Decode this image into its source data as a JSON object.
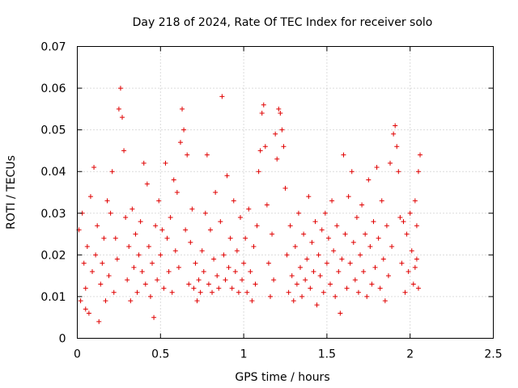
{
  "chart_data": {
    "type": "scatter",
    "title": "Day 218 of 2024, Rate Of TEC Index for receiver solo",
    "xlabel": "GPS time / hours",
    "ylabel": "ROTI / TECUs",
    "xlim": [
      0,
      2.5
    ],
    "ylim": [
      0,
      0.07
    ],
    "xticks": [
      0,
      0.5,
      1,
      1.5,
      2,
      2.5
    ],
    "xtick_labels": [
      "0",
      "0.5",
      "1",
      "1.5",
      "2",
      "2.5"
    ],
    "yticks": [
      0,
      0.01,
      0.02,
      0.03,
      0.04,
      0.05,
      0.06,
      0.07
    ],
    "ytick_labels": [
      "0",
      "0.01",
      "0.02",
      "0.03",
      "0.04",
      "0.05",
      "0.06",
      "0.07"
    ],
    "grid": true,
    "marker": "+",
    "color": "#e00000",
    "series": [
      {
        "name": "ROTI",
        "points": [
          [
            0.01,
            0.026
          ],
          [
            0.02,
            0.009
          ],
          [
            0.03,
            0.03
          ],
          [
            0.04,
            0.018
          ],
          [
            0.05,
            0.012
          ],
          [
            0.05,
            0.007
          ],
          [
            0.06,
            0.022
          ],
          [
            0.07,
            0.006
          ],
          [
            0.08,
            0.034
          ],
          [
            0.09,
            0.016
          ],
          [
            0.1,
            0.041
          ],
          [
            0.11,
            0.02
          ],
          [
            0.12,
            0.027
          ],
          [
            0.13,
            0.004
          ],
          [
            0.14,
            0.013
          ],
          [
            0.15,
            0.018
          ],
          [
            0.16,
            0.024
          ],
          [
            0.17,
            0.009
          ],
          [
            0.18,
            0.033
          ],
          [
            0.19,
            0.015
          ],
          [
            0.2,
            0.03
          ],
          [
            0.21,
            0.04
          ],
          [
            0.22,
            0.011
          ],
          [
            0.23,
            0.024
          ],
          [
            0.24,
            0.019
          ],
          [
            0.25,
            0.055
          ],
          [
            0.26,
            0.06
          ],
          [
            0.27,
            0.053
          ],
          [
            0.28,
            0.045
          ],
          [
            0.29,
            0.029
          ],
          [
            0.3,
            0.014
          ],
          [
            0.31,
            0.022
          ],
          [
            0.32,
            0.009
          ],
          [
            0.33,
            0.031
          ],
          [
            0.34,
            0.017
          ],
          [
            0.35,
            0.025
          ],
          [
            0.36,
            0.011
          ],
          [
            0.37,
            0.02
          ],
          [
            0.38,
            0.028
          ],
          [
            0.39,
            0.016
          ],
          [
            0.4,
            0.042
          ],
          [
            0.41,
            0.013
          ],
          [
            0.42,
            0.037
          ],
          [
            0.43,
            0.022
          ],
          [
            0.44,
            0.01
          ],
          [
            0.45,
            0.018
          ],
          [
            0.46,
            0.005
          ],
          [
            0.47,
            0.027
          ],
          [
            0.48,
            0.014
          ],
          [
            0.49,
            0.033
          ],
          [
            0.5,
            0.02
          ],
          [
            0.51,
            0.026
          ],
          [
            0.52,
            0.012
          ],
          [
            0.53,
            0.042
          ],
          [
            0.54,
            0.024
          ],
          [
            0.55,
            0.016
          ],
          [
            0.56,
            0.029
          ],
          [
            0.57,
            0.011
          ],
          [
            0.58,
            0.038
          ],
          [
            0.59,
            0.021
          ],
          [
            0.6,
            0.035
          ],
          [
            0.61,
            0.017
          ],
          [
            0.62,
            0.047
          ],
          [
            0.63,
            0.055
          ],
          [
            0.64,
            0.05
          ],
          [
            0.65,
            0.026
          ],
          [
            0.66,
            0.044
          ],
          [
            0.67,
            0.013
          ],
          [
            0.68,
            0.023
          ],
          [
            0.69,
            0.031
          ],
          [
            0.7,
            0.012
          ],
          [
            0.71,
            0.018
          ],
          [
            0.72,
            0.009
          ],
          [
            0.73,
            0.014
          ],
          [
            0.74,
            0.011
          ],
          [
            0.75,
            0.021
          ],
          [
            0.76,
            0.016
          ],
          [
            0.77,
            0.03
          ],
          [
            0.78,
            0.044
          ],
          [
            0.79,
            0.013
          ],
          [
            0.8,
            0.026
          ],
          [
            0.81,
            0.011
          ],
          [
            0.82,
            0.019
          ],
          [
            0.83,
            0.035
          ],
          [
            0.84,
            0.015
          ],
          [
            0.85,
            0.012
          ],
          [
            0.86,
            0.028
          ],
          [
            0.87,
            0.058
          ],
          [
            0.88,
            0.02
          ],
          [
            0.89,
            0.014
          ],
          [
            0.9,
            0.039
          ],
          [
            0.91,
            0.017
          ],
          [
            0.92,
            0.024
          ],
          [
            0.93,
            0.012
          ],
          [
            0.94,
            0.033
          ],
          [
            0.95,
            0.016
          ],
          [
            0.96,
            0.021
          ],
          [
            0.97,
            0.011
          ],
          [
            0.98,
            0.029
          ],
          [
            0.99,
            0.014
          ],
          [
            1.0,
            0.018
          ],
          [
            1.01,
            0.024
          ],
          [
            1.02,
            0.011
          ],
          [
            1.03,
            0.031
          ],
          [
            1.04,
            0.016
          ],
          [
            1.05,
            0.009
          ],
          [
            1.06,
            0.022
          ],
          [
            1.07,
            0.013
          ],
          [
            1.08,
            0.027
          ],
          [
            1.09,
            0.04
          ],
          [
            1.1,
            0.045
          ],
          [
            1.11,
            0.054
          ],
          [
            1.12,
            0.056
          ],
          [
            1.13,
            0.046
          ],
          [
            1.14,
            0.032
          ],
          [
            1.15,
            0.018
          ],
          [
            1.16,
            0.01
          ],
          [
            1.17,
            0.025
          ],
          [
            1.18,
            0.014
          ],
          [
            1.19,
            0.049
          ],
          [
            1.2,
            0.043
          ],
          [
            1.21,
            0.055
          ],
          [
            1.22,
            0.054
          ],
          [
            1.23,
            0.05
          ],
          [
            1.24,
            0.046
          ],
          [
            1.25,
            0.036
          ],
          [
            1.26,
            0.02
          ],
          [
            1.27,
            0.011
          ],
          [
            1.28,
            0.027
          ],
          [
            1.29,
            0.015
          ],
          [
            1.3,
            0.009
          ],
          [
            1.31,
            0.022
          ],
          [
            1.32,
            0.013
          ],
          [
            1.33,
            0.03
          ],
          [
            1.34,
            0.017
          ],
          [
            1.35,
            0.01
          ],
          [
            1.36,
            0.025
          ],
          [
            1.37,
            0.014
          ],
          [
            1.38,
            0.019
          ],
          [
            1.39,
            0.034
          ],
          [
            1.4,
            0.012
          ],
          [
            1.41,
            0.023
          ],
          [
            1.42,
            0.016
          ],
          [
            1.43,
            0.028
          ],
          [
            1.44,
            0.008
          ],
          [
            1.45,
            0.02
          ],
          [
            1.46,
            0.015
          ],
          [
            1.47,
            0.026
          ],
          [
            1.48,
            0.011
          ],
          [
            1.49,
            0.03
          ],
          [
            1.5,
            0.018
          ],
          [
            1.51,
            0.024
          ],
          [
            1.52,
            0.013
          ],
          [
            1.53,
            0.033
          ],
          [
            1.54,
            0.021
          ],
          [
            1.55,
            0.01
          ],
          [
            1.56,
            0.027
          ],
          [
            1.57,
            0.016
          ],
          [
            1.58,
            0.006
          ],
          [
            1.59,
            0.019
          ],
          [
            1.6,
            0.044
          ],
          [
            1.61,
            0.025
          ],
          [
            1.62,
            0.012
          ],
          [
            1.63,
            0.034
          ],
          [
            1.64,
            0.018
          ],
          [
            1.65,
            0.04
          ],
          [
            1.66,
            0.023
          ],
          [
            1.67,
            0.014
          ],
          [
            1.68,
            0.029
          ],
          [
            1.69,
            0.011
          ],
          [
            1.7,
            0.02
          ],
          [
            1.71,
            0.032
          ],
          [
            1.72,
            0.016
          ],
          [
            1.73,
            0.025
          ],
          [
            1.74,
            0.01
          ],
          [
            1.75,
            0.038
          ],
          [
            1.76,
            0.022
          ],
          [
            1.77,
            0.013
          ],
          [
            1.78,
            0.028
          ],
          [
            1.79,
            0.017
          ],
          [
            1.8,
            0.041
          ],
          [
            1.81,
            0.024
          ],
          [
            1.82,
            0.012
          ],
          [
            1.83,
            0.033
          ],
          [
            1.84,
            0.019
          ],
          [
            1.85,
            0.009
          ],
          [
            1.86,
            0.027
          ],
          [
            1.87,
            0.015
          ],
          [
            1.88,
            0.042
          ],
          [
            1.89,
            0.022
          ],
          [
            1.9,
            0.049
          ],
          [
            1.91,
            0.051
          ],
          [
            1.92,
            0.046
          ],
          [
            1.93,
            0.04
          ],
          [
            1.94,
            0.029
          ],
          [
            1.95,
            0.018
          ],
          [
            1.96,
            0.028
          ],
          [
            1.97,
            0.011
          ],
          [
            1.98,
            0.025
          ],
          [
            1.99,
            0.016
          ],
          [
            2.0,
            0.03
          ],
          [
            2.01,
            0.021
          ],
          [
            2.02,
            0.013
          ],
          [
            2.03,
            0.033
          ],
          [
            2.04,
            0.019
          ],
          [
            2.05,
            0.04
          ],
          [
            2.06,
            0.044
          ],
          [
            2.05,
            0.012
          ],
          [
            2.04,
            0.027
          ],
          [
            2.03,
            0.017
          ]
        ]
      }
    ]
  }
}
